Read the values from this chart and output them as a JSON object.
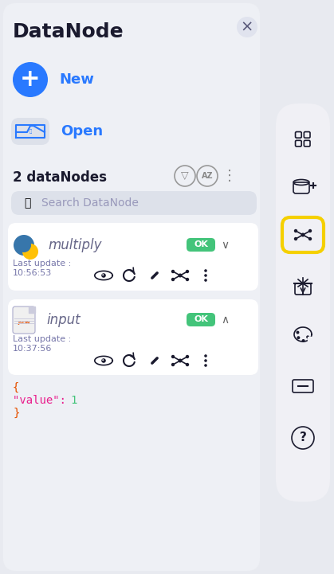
{
  "bg_color": "#e8eaf0",
  "panel_bg": "#eef0f5",
  "white": "#ffffff",
  "title": "DataNode",
  "title_color": "#1a1a2e",
  "blue_btn_color": "#2979ff",
  "new_label": "New",
  "open_label": "Open",
  "section_label": "2 dataNodes",
  "search_placeholder": "Search DataNode",
  "node1_name": "multiply",
  "node1_update": "Last update :",
  "node1_time": "10:56:53",
  "node1_status": "OK",
  "node2_name": "input",
  "node2_update": "Last update :",
  "node2_time": "10:37:56",
  "node2_status": "OK",
  "ok_color": "#43c47a",
  "json_open": "{",
  "json_key_color": "#e91e8c",
  "json_val_color": "#43c47a",
  "json_brace_color": "#e65100",
  "sidebar_pill_bg": "#f0f0f5",
  "active_icon_border": "#f5d000",
  "label_color": "#2979ff",
  "search_bg": "#dde1ea",
  "node_bg": "#ffffff",
  "icon_color": "#1a1a2e",
  "gray_text": "#8888aa",
  "update_color": "#7777aa"
}
